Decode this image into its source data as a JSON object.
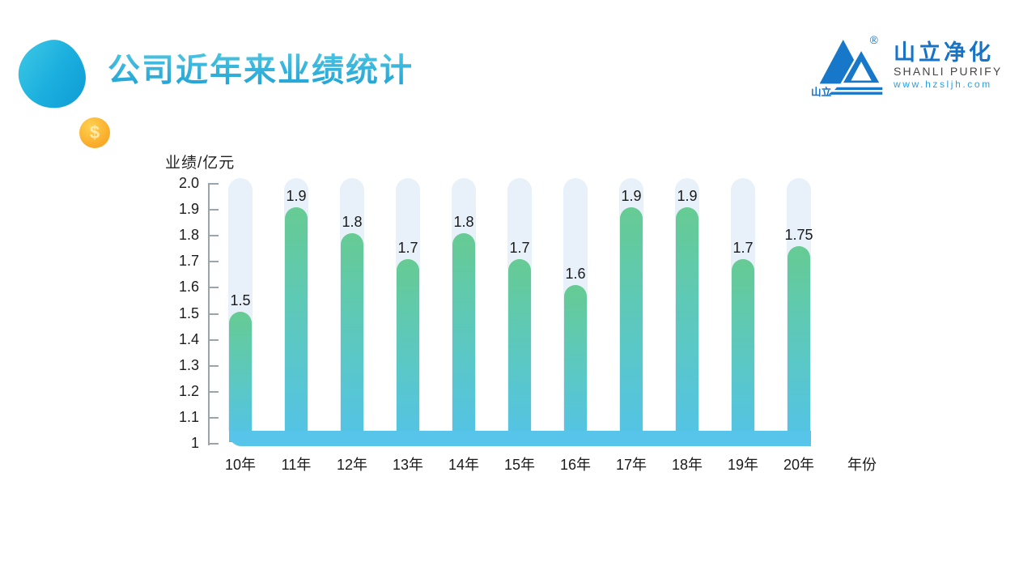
{
  "slide": {
    "title": "公司近年来业绩统计"
  },
  "decor": {
    "coin_symbol": "$"
  },
  "logo": {
    "brand_cn": "山立净化",
    "brand_en": "SHANLI PURIFY",
    "website": "www.hzsljh.com",
    "mark_text": "山立",
    "registered": "®"
  },
  "chart_data": {
    "type": "bar",
    "title": "公司近年来业绩统计",
    "ylabel": "业绩/亿元",
    "xlabel": "年份",
    "categories": [
      "10年",
      "11年",
      "12年",
      "13年",
      "14年",
      "15年",
      "16年",
      "17年",
      "18年",
      "19年",
      "20年"
    ],
    "values": [
      1.5,
      1.9,
      1.8,
      1.7,
      1.8,
      1.7,
      1.6,
      1.9,
      1.9,
      1.7,
      1.75
    ],
    "value_labels": [
      "1.5",
      "1.9",
      "1.8",
      "1.7",
      "1.8",
      "1.7",
      "1.6",
      "1.9",
      "1.9",
      "1.7",
      "1.75"
    ],
    "ylim": [
      1,
      2
    ],
    "yticks": [
      1,
      1.1,
      1.2,
      1.3,
      1.4,
      1.5,
      1.6,
      1.7,
      1.8,
      1.9,
      2.0
    ],
    "ytick_labels": [
      "1",
      "1.1",
      "1.2",
      "1.3",
      "1.4",
      "1.5",
      "1.6",
      "1.7",
      "1.8",
      "1.9",
      "2.0"
    ],
    "grid": false,
    "legend": null,
    "colors": {
      "bar_top": "#66cb93",
      "bar_mid": "#5bc8c3",
      "bar_bottom": "#53c3e8",
      "band": "#56c5e9",
      "track": "#e8f1fa",
      "axis": "#9aa4ac",
      "label": "#1a1a1a"
    }
  }
}
